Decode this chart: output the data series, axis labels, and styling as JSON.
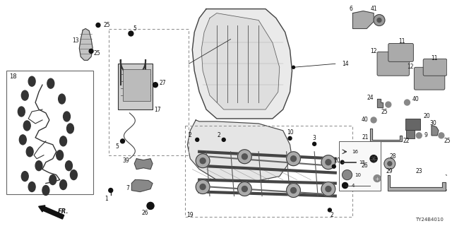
{
  "bg_color": "#ffffff",
  "fig_width": 6.4,
  "fig_height": 3.2,
  "dpi": 100,
  "watermark": "TY24B4010",
  "direction_label": "FR."
}
